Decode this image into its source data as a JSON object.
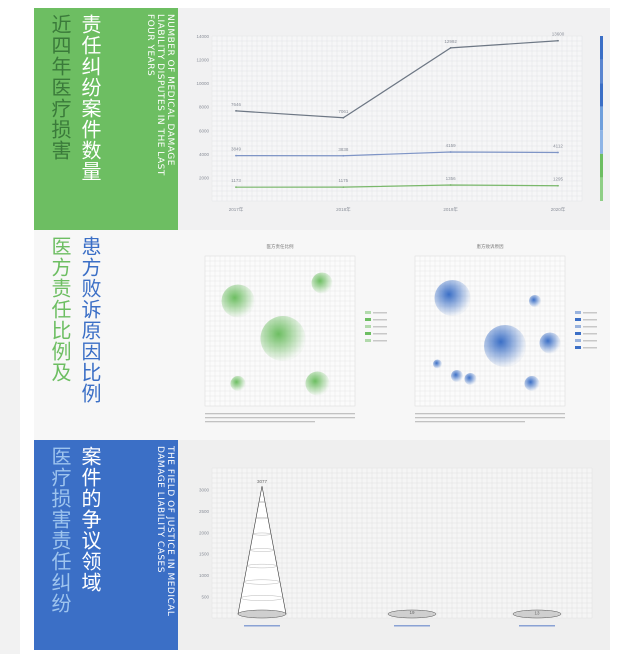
{
  "panel1": {
    "title_cn_a": "近四年医疗损害",
    "title_cn_b": "责任纠纷案件数量",
    "title_en": "NUMBER OF MEDICAL DAMAGE LIABILITY DISPUTES IN THE LAST FOUR YEARS"
  },
  "panel2": {
    "title_cn_a": "医方责任比例及",
    "title_cn_b": "患方败诉原因比例",
    "chart_left_title": "医方责任比例",
    "chart_right_title": "患方败诉原因"
  },
  "panel3": {
    "title_cn_a": "医疗损害责任纠纷",
    "title_cn_b": "案件的争议领域",
    "title_en": "THE FIELD OF JUSTICE IN MEDICAL DAMAGE LIABILITY CASES"
  },
  "colors": {
    "green": "#6dbe62",
    "blue": "#3b6fc6",
    "line_dark": "#6d7784",
    "line_blue": "#7f95c6",
    "line_green": "#7ab86b"
  },
  "chart_data": [
    {
      "type": "line",
      "x": [
        "2017年",
        "2018年",
        "2019年",
        "2020年"
      ],
      "ylim": [
        0,
        14000
      ],
      "yticks": [
        2000,
        4000,
        6000,
        8000,
        10000,
        12000,
        14000
      ],
      "series": [
        {
          "values": [
            7646,
            7061,
            12992,
            13600
          ],
          "labels": [
            "7646",
            "7061",
            "12992",
            "13600"
          ]
        },
        {
          "values": [
            3849,
            3838,
            4159,
            4112
          ],
          "labels": [
            "3849",
            "3838",
            "4159",
            "4112"
          ]
        },
        {
          "values": [
            1173,
            1175,
            1356,
            1295
          ],
          "labels": [
            "1173",
            "1175",
            "1356",
            "1295"
          ]
        }
      ]
    },
    {
      "type": "scatter",
      "title": "医方责任比例",
      "color": "#6dbe62",
      "points": [
        {
          "x": 0.22,
          "y": 0.3,
          "r": 0.11
        },
        {
          "x": 0.78,
          "y": 0.18,
          "r": 0.07
        },
        {
          "x": 0.52,
          "y": 0.55,
          "r": 0.15
        },
        {
          "x": 0.22,
          "y": 0.85,
          "r": 0.05
        },
        {
          "x": 0.75,
          "y": 0.85,
          "r": 0.08
        }
      ],
      "legend_count": 5
    },
    {
      "type": "scatter",
      "title": "患方败诉原因",
      "color": "#3b6fc6",
      "points": [
        {
          "x": 0.25,
          "y": 0.28,
          "r": 0.12
        },
        {
          "x": 0.8,
          "y": 0.3,
          "r": 0.04
        },
        {
          "x": 0.9,
          "y": 0.58,
          "r": 0.07
        },
        {
          "x": 0.6,
          "y": 0.6,
          "r": 0.14
        },
        {
          "x": 0.15,
          "y": 0.72,
          "r": 0.03
        },
        {
          "x": 0.28,
          "y": 0.8,
          "r": 0.04
        },
        {
          "x": 0.37,
          "y": 0.82,
          "r": 0.04
        },
        {
          "x": 0.78,
          "y": 0.85,
          "r": 0.05
        }
      ],
      "legend_count": 6
    },
    {
      "type": "bar",
      "categories": [
        "",
        "",
        ""
      ],
      "values": [
        3077,
        19,
        13
      ],
      "labels": [
        "3077",
        "19",
        "13"
      ],
      "ylim": [
        0,
        3500
      ],
      "yticks": [
        500,
        1000,
        1500,
        2000,
        2500,
        3000
      ]
    }
  ]
}
